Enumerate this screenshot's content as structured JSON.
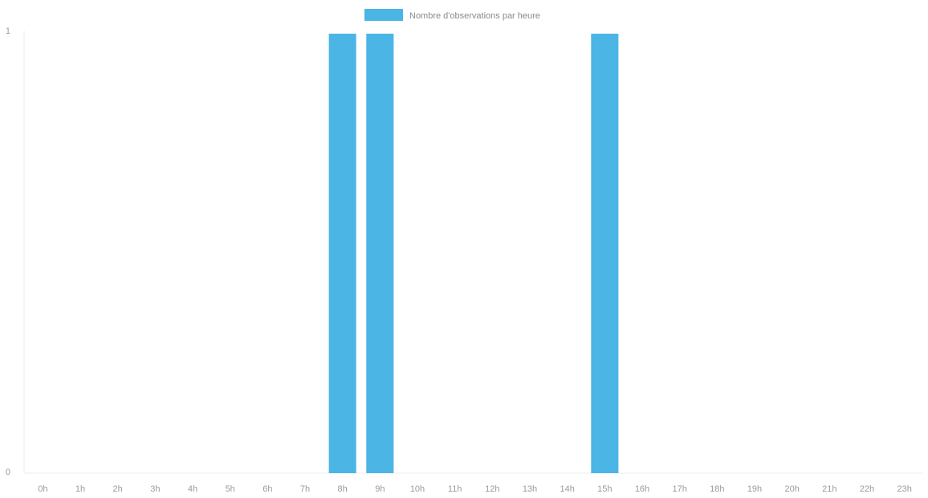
{
  "chart_data": {
    "type": "bar",
    "categories": [
      "0h",
      "1h",
      "2h",
      "3h",
      "4h",
      "5h",
      "6h",
      "7h",
      "8h",
      "9h",
      "10h",
      "11h",
      "12h",
      "13h",
      "14h",
      "15h",
      "16h",
      "17h",
      "18h",
      "19h",
      "20h",
      "21h",
      "22h",
      "23h"
    ],
    "series": [
      {
        "name": "Nombre d'observations par heure",
        "values": [
          0,
          0,
          0,
          0,
          0,
          0,
          0,
          0,
          1,
          1,
          0,
          0,
          0,
          0,
          0,
          1,
          0,
          0,
          0,
          0,
          0,
          0,
          0,
          0
        ],
        "color": "#4bb5e5"
      }
    ],
    "ylim": [
      0,
      1
    ],
    "yticks": [
      "0",
      "1"
    ],
    "legend_position": "top-center",
    "grid": false
  }
}
